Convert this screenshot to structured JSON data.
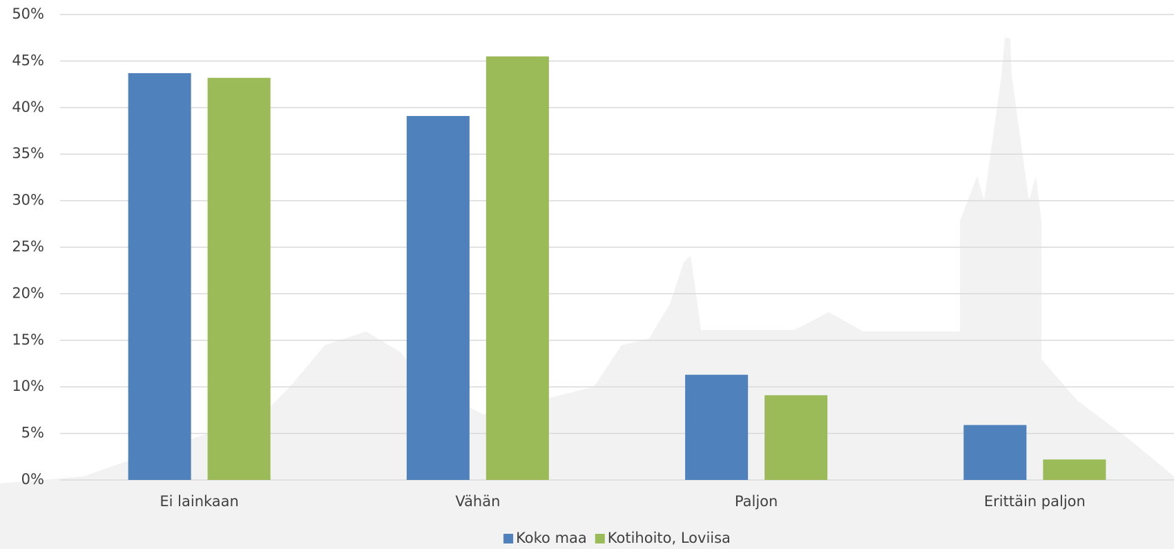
{
  "chart_data": {
    "type": "bar",
    "categories": [
      "Ei lainkaan",
      "Vähän",
      "Paljon",
      "Erittäin paljon"
    ],
    "series": [
      {
        "name": "Koko maa",
        "color": "#4f81bd",
        "values": [
          43.7,
          39.1,
          11.3,
          5.9
        ]
      },
      {
        "name": "Kotihoito, Loviisa",
        "color": "#9bbb59",
        "values": [
          43.2,
          45.5,
          9.1,
          2.2
        ]
      }
    ],
    "ylim": [
      0,
      50
    ],
    "yticks": [
      {
        "value": 0,
        "label": "0%"
      },
      {
        "value": 5,
        "label": "5%"
      },
      {
        "value": 10,
        "label": "10%"
      },
      {
        "value": 15,
        "label": "15%"
      },
      {
        "value": 20,
        "label": "20%"
      },
      {
        "value": 25,
        "label": "25%"
      },
      {
        "value": 30,
        "label": "30%"
      },
      {
        "value": 35,
        "label": "35%"
      },
      {
        "value": 40,
        "label": "40%"
      },
      {
        "value": 45,
        "label": "45%"
      },
      {
        "value": 50,
        "label": "50%"
      }
    ],
    "grid": true,
    "legend": "bottom"
  }
}
